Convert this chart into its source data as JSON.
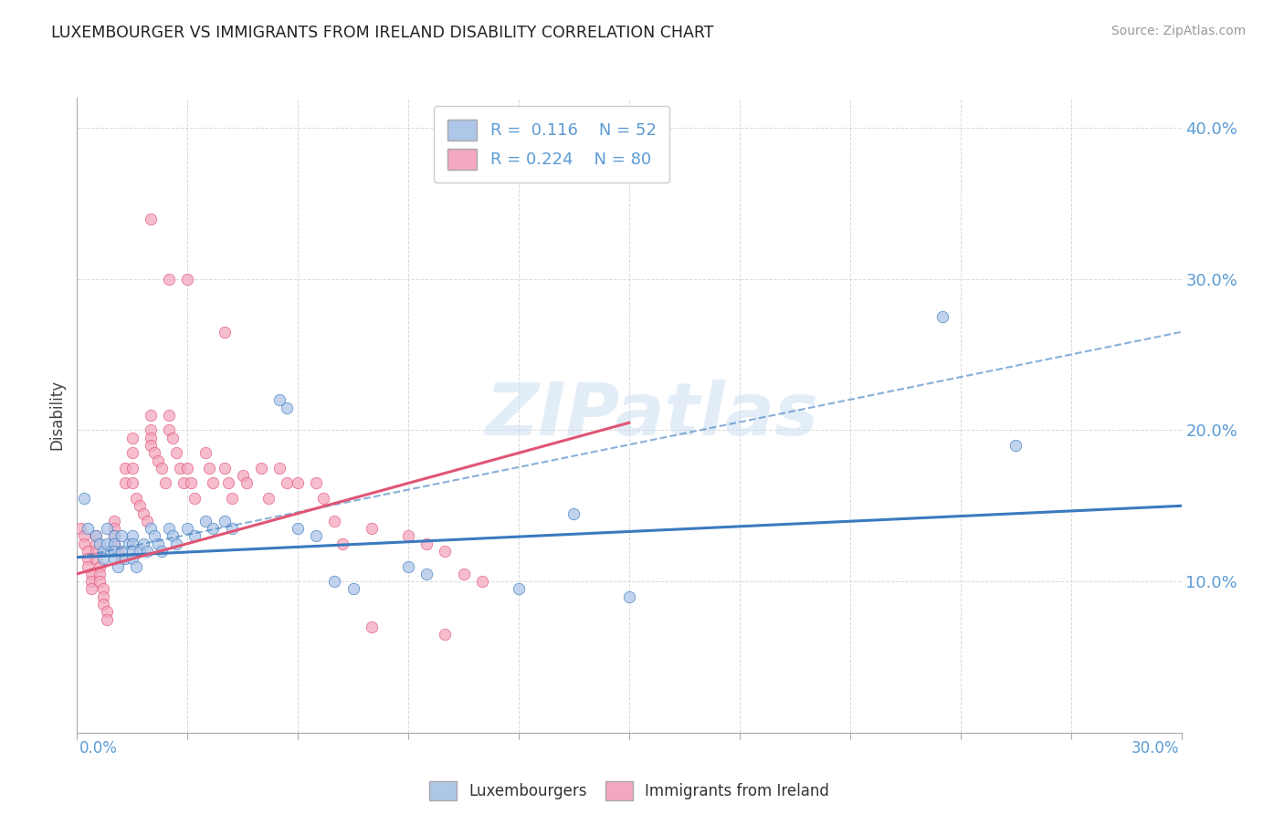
{
  "title": "LUXEMBOURGER VS IMMIGRANTS FROM IRELAND DISABILITY CORRELATION CHART",
  "source": "Source: ZipAtlas.com",
  "ylabel": "Disability",
  "xlim": [
    0.0,
    0.3
  ],
  "ylim": [
    0.0,
    0.42
  ],
  "color_lux": "#aec6e8",
  "color_ire": "#f4a7c0",
  "line_color_lux": "#3a7abf",
  "line_color_ire": "#e05575",
  "scatter_lux": [
    [
      0.002,
      0.155
    ],
    [
      0.003,
      0.135
    ],
    [
      0.005,
      0.13
    ],
    [
      0.006,
      0.125
    ],
    [
      0.007,
      0.12
    ],
    [
      0.007,
      0.115
    ],
    [
      0.008,
      0.135
    ],
    [
      0.008,
      0.125
    ],
    [
      0.009,
      0.12
    ],
    [
      0.01,
      0.13
    ],
    [
      0.01,
      0.125
    ],
    [
      0.01,
      0.12
    ],
    [
      0.01,
      0.115
    ],
    [
      0.011,
      0.11
    ],
    [
      0.012,
      0.13
    ],
    [
      0.012,
      0.12
    ],
    [
      0.013,
      0.115
    ],
    [
      0.014,
      0.125
    ],
    [
      0.015,
      0.13
    ],
    [
      0.015,
      0.125
    ],
    [
      0.015,
      0.12
    ],
    [
      0.015,
      0.115
    ],
    [
      0.016,
      0.11
    ],
    [
      0.017,
      0.12
    ],
    [
      0.018,
      0.125
    ],
    [
      0.019,
      0.12
    ],
    [
      0.02,
      0.135
    ],
    [
      0.021,
      0.13
    ],
    [
      0.022,
      0.125
    ],
    [
      0.023,
      0.12
    ],
    [
      0.025,
      0.135
    ],
    [
      0.026,
      0.13
    ],
    [
      0.027,
      0.125
    ],
    [
      0.03,
      0.135
    ],
    [
      0.032,
      0.13
    ],
    [
      0.035,
      0.14
    ],
    [
      0.037,
      0.135
    ],
    [
      0.04,
      0.14
    ],
    [
      0.042,
      0.135
    ],
    [
      0.055,
      0.22
    ],
    [
      0.057,
      0.215
    ],
    [
      0.06,
      0.135
    ],
    [
      0.065,
      0.13
    ],
    [
      0.07,
      0.1
    ],
    [
      0.075,
      0.095
    ],
    [
      0.09,
      0.11
    ],
    [
      0.095,
      0.105
    ],
    [
      0.12,
      0.095
    ],
    [
      0.135,
      0.145
    ],
    [
      0.15,
      0.09
    ],
    [
      0.235,
      0.275
    ],
    [
      0.255,
      0.19
    ]
  ],
  "scatter_ire": [
    [
      0.001,
      0.135
    ],
    [
      0.002,
      0.13
    ],
    [
      0.002,
      0.125
    ],
    [
      0.003,
      0.12
    ],
    [
      0.003,
      0.115
    ],
    [
      0.003,
      0.11
    ],
    [
      0.004,
      0.105
    ],
    [
      0.004,
      0.1
    ],
    [
      0.004,
      0.095
    ],
    [
      0.005,
      0.13
    ],
    [
      0.005,
      0.125
    ],
    [
      0.005,
      0.12
    ],
    [
      0.005,
      0.115
    ],
    [
      0.006,
      0.11
    ],
    [
      0.006,
      0.105
    ],
    [
      0.006,
      0.1
    ],
    [
      0.007,
      0.095
    ],
    [
      0.007,
      0.09
    ],
    [
      0.007,
      0.085
    ],
    [
      0.008,
      0.08
    ],
    [
      0.008,
      0.075
    ],
    [
      0.01,
      0.14
    ],
    [
      0.01,
      0.135
    ],
    [
      0.01,
      0.13
    ],
    [
      0.01,
      0.125
    ],
    [
      0.011,
      0.12
    ],
    [
      0.012,
      0.115
    ],
    [
      0.013,
      0.175
    ],
    [
      0.013,
      0.165
    ],
    [
      0.015,
      0.195
    ],
    [
      0.015,
      0.185
    ],
    [
      0.015,
      0.175
    ],
    [
      0.015,
      0.165
    ],
    [
      0.016,
      0.155
    ],
    [
      0.017,
      0.15
    ],
    [
      0.018,
      0.145
    ],
    [
      0.019,
      0.14
    ],
    [
      0.02,
      0.21
    ],
    [
      0.02,
      0.2
    ],
    [
      0.02,
      0.195
    ],
    [
      0.02,
      0.19
    ],
    [
      0.021,
      0.185
    ],
    [
      0.022,
      0.18
    ],
    [
      0.023,
      0.175
    ],
    [
      0.024,
      0.165
    ],
    [
      0.025,
      0.21
    ],
    [
      0.025,
      0.2
    ],
    [
      0.026,
      0.195
    ],
    [
      0.027,
      0.185
    ],
    [
      0.028,
      0.175
    ],
    [
      0.029,
      0.165
    ],
    [
      0.03,
      0.175
    ],
    [
      0.031,
      0.165
    ],
    [
      0.032,
      0.155
    ],
    [
      0.035,
      0.185
    ],
    [
      0.036,
      0.175
    ],
    [
      0.037,
      0.165
    ],
    [
      0.04,
      0.175
    ],
    [
      0.041,
      0.165
    ],
    [
      0.042,
      0.155
    ],
    [
      0.045,
      0.17
    ],
    [
      0.046,
      0.165
    ],
    [
      0.05,
      0.175
    ],
    [
      0.052,
      0.155
    ],
    [
      0.055,
      0.175
    ],
    [
      0.057,
      0.165
    ],
    [
      0.06,
      0.165
    ],
    [
      0.065,
      0.165
    ],
    [
      0.067,
      0.155
    ],
    [
      0.07,
      0.14
    ],
    [
      0.072,
      0.125
    ],
    [
      0.08,
      0.135
    ],
    [
      0.09,
      0.13
    ],
    [
      0.095,
      0.125
    ],
    [
      0.1,
      0.12
    ],
    [
      0.105,
      0.105
    ],
    [
      0.11,
      0.1
    ],
    [
      0.02,
      0.34
    ],
    [
      0.025,
      0.3
    ],
    [
      0.03,
      0.3
    ],
    [
      0.04,
      0.265
    ],
    [
      0.08,
      0.07
    ],
    [
      0.1,
      0.065
    ]
  ],
  "trendline_lux_solid": [
    [
      0.0,
      0.116
    ],
    [
      0.3,
      0.15
    ]
  ],
  "trendline_lux_dash": [
    [
      0.0,
      0.116
    ],
    [
      0.3,
      0.265
    ]
  ],
  "trendline_ire": [
    [
      0.0,
      0.105
    ],
    [
      0.15,
      0.205
    ]
  ],
  "watermark": "ZIPatlas",
  "background_color": "#ffffff",
  "grid_color": "#d0d0d0"
}
